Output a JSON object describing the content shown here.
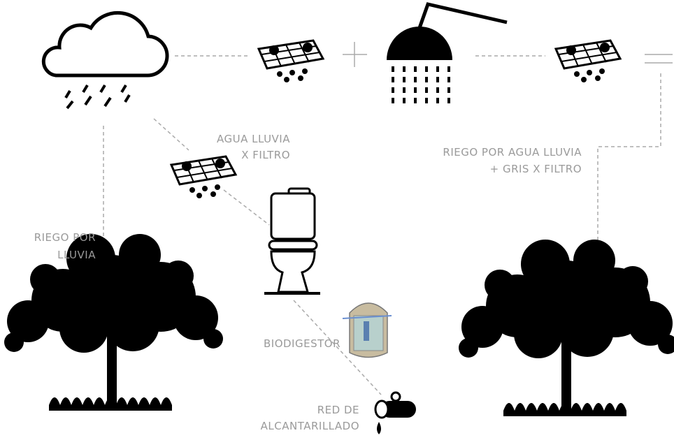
{
  "labels": {
    "rain_filter": [
      "AGUA LLUVIA",
      "X FILTRO"
    ],
    "grey_irrigation": [
      "RIEGO POR AGUA LLUVIA",
      "+ GRIS X FILTRO"
    ],
    "rain_irrigation": [
      "RIEGO POR",
      "LLUVIA"
    ],
    "biodigester": [
      "BIODIGESTOR"
    ],
    "sewer": [
      "RED DE",
      "ALCANTARILLADO"
    ]
  }
}
